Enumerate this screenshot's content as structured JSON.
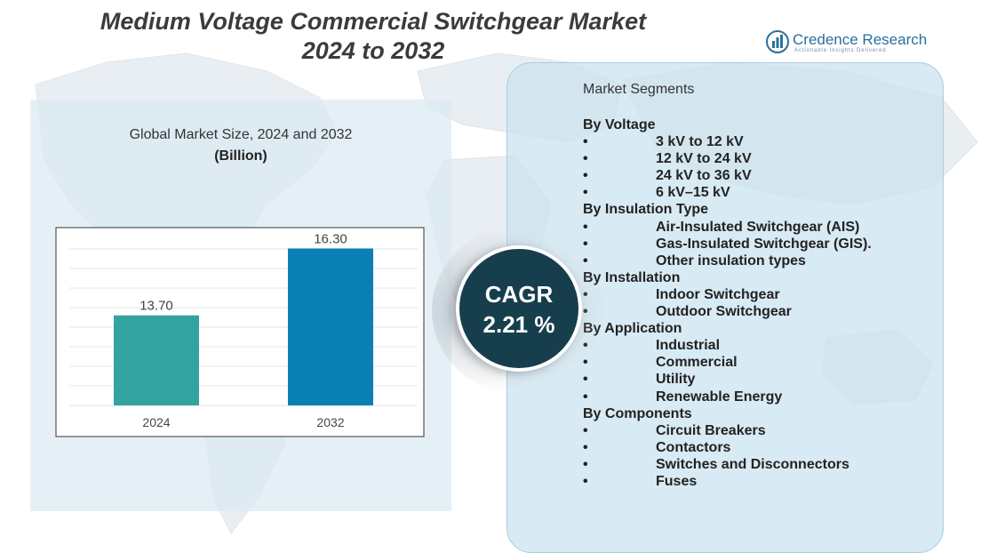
{
  "title": {
    "line1": "Medium Voltage Commercial Switchgear Market",
    "line2": "2024 to 2032"
  },
  "logo": {
    "name": "Credence Research",
    "tagline": "Actionable Insights Delivered",
    "color": "#2a6f9e"
  },
  "chart_data": {
    "type": "bar",
    "title": "Global Market Size, 2024 and 2032",
    "unit": "(Billion)",
    "categories": [
      "2024",
      "2032"
    ],
    "values": [
      13.7,
      16.3
    ],
    "value_labels": [
      "13.70",
      "16.30"
    ],
    "colors": [
      "#33a3a0",
      "#0a7fb4"
    ],
    "ylim": [
      10.2,
      16.8
    ],
    "grid": true,
    "legend": "none"
  },
  "cagr": {
    "label": "CAGR",
    "value": "2.21 %"
  },
  "segments": {
    "heading": "Market Segments",
    "bullet": "•",
    "groups": [
      {
        "name": "By Voltage",
        "items": [
          "3 kV to 12 kV",
          "12 kV to 24 kV",
          "24 kV to 36 kV",
          "6 kV–15 kV"
        ]
      },
      {
        "name": "By Insulation Type",
        "items": [
          "Air-Insulated Switchgear (AIS)",
          "Gas-Insulated Switchgear (GIS).",
          "Other insulation types"
        ]
      },
      {
        "name": "By Installation",
        "items": [
          "Indoor Switchgear",
          "Outdoor Switchgear"
        ]
      },
      {
        "name": "By Application",
        "items": [
          "Industrial",
          "Commercial",
          "Utility",
          "Renewable Energy"
        ]
      },
      {
        "name": "By Components",
        "items": [
          "Circuit Breakers",
          "Contactors",
          "Switches and Disconnectors",
          "Fuses"
        ]
      }
    ]
  }
}
